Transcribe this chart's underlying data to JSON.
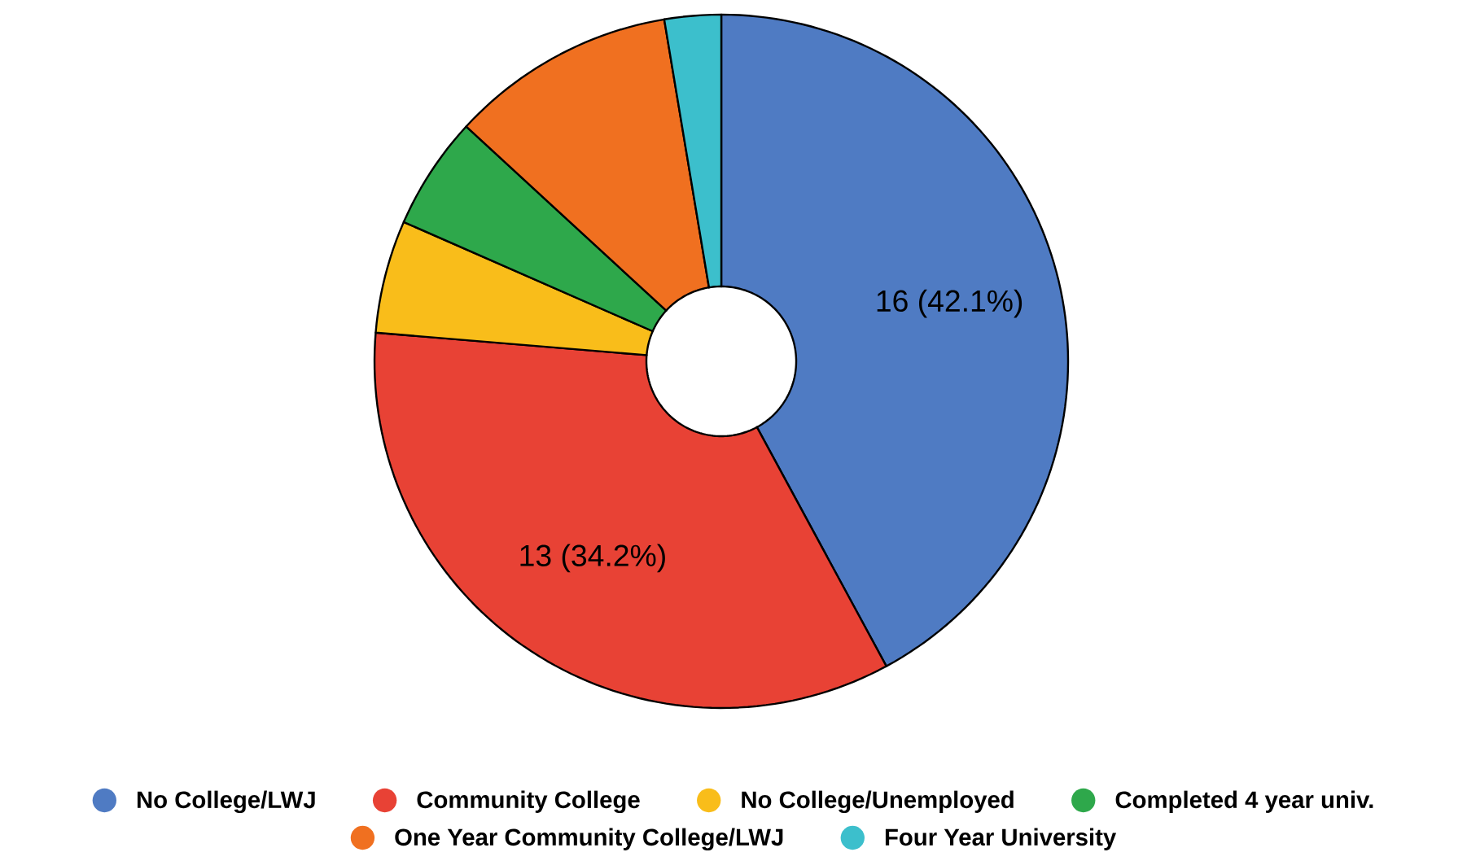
{
  "chart_data": {
    "type": "donut",
    "categories": [
      "No College/LWJ",
      "Community College",
      "No College/Unemployed",
      "Completed 4 year univ.",
      "One Year Community College/LWJ",
      "Four Year University"
    ],
    "values": [
      16,
      13,
      2,
      2,
      4,
      1
    ],
    "colors": [
      "#4f7bc3",
      "#e84235",
      "#f9bd1a",
      "#2ea84b",
      "#f07020",
      "#3cbfcc"
    ],
    "value_labels": [
      "16 (42.1%)",
      "13 (34.2%)",
      null,
      null,
      null,
      null
    ],
    "legend": "bottom"
  }
}
